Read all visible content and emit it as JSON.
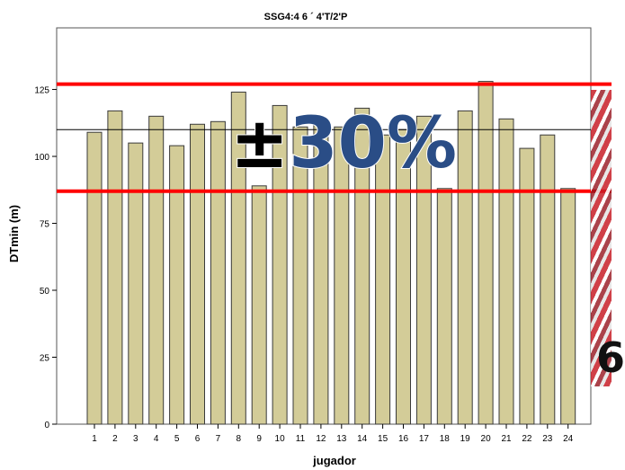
{
  "chart_data": {
    "type": "bar",
    "title": "SSG4:4 6 ´ 4'T/2'P",
    "xlabel": "jugador",
    "ylabel": "DTmin (m)",
    "categories": [
      "1",
      "2",
      "3",
      "4",
      "5",
      "6",
      "7",
      "8",
      "9",
      "10",
      "11",
      "12",
      "13",
      "14",
      "15",
      "16",
      "17",
      "18",
      "19",
      "20",
      "21",
      "22",
      "23",
      "24"
    ],
    "values": [
      109,
      117,
      105,
      115,
      104,
      112,
      113,
      124,
      89,
      119,
      111,
      112,
      111,
      118,
      108,
      110,
      115,
      88,
      117,
      128,
      114,
      103,
      108,
      88
    ],
    "ylim": [
      0,
      148
    ],
    "yticks": [
      0,
      25,
      50,
      75,
      100,
      125
    ],
    "grid": false,
    "mean_line": 110,
    "band_upper": 127,
    "band_lower": 87,
    "overlay_text": "±30%",
    "colors": {
      "bar_fill": "#d3cc98",
      "bar_stroke": "#3a3a3a",
      "band_line": "#ff0000",
      "mean_line": "#000000",
      "overlay_pm": "#000000",
      "overlay_pct": "#2a4d86"
    }
  },
  "photo": {
    "glyph": "6"
  }
}
